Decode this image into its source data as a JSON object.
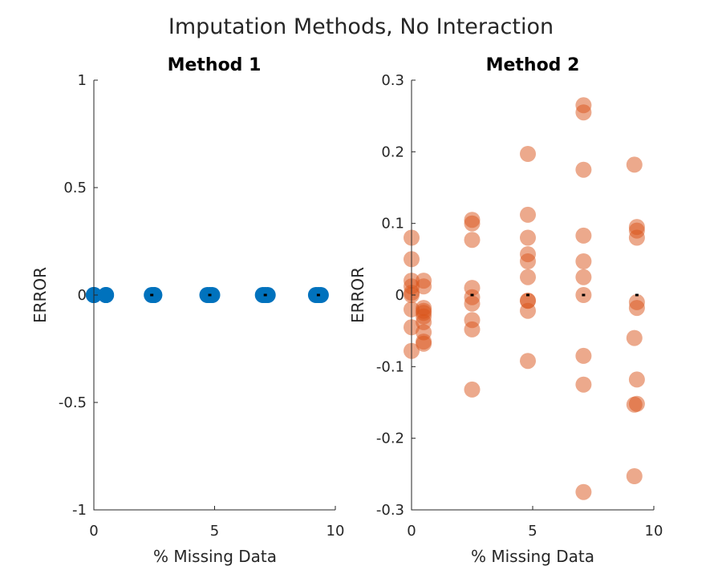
{
  "figure": {
    "title": "Imputation Methods, No Interaction"
  },
  "chart_data": [
    {
      "type": "scatter",
      "title": "Method 1",
      "xlabel": "% Missing Data",
      "ylabel": "ERROR",
      "xlim": [
        0,
        10
      ],
      "ylim": [
        -1,
        1
      ],
      "xticks": [
        "0",
        "5",
        "10"
      ],
      "yticks": [
        "-1",
        "-0.5",
        "0",
        "0.5",
        "1"
      ],
      "grid": false,
      "color": "#0072BD",
      "opacity": 1.0,
      "x": [
        0,
        0,
        0,
        0,
        0.5,
        0.5,
        0.5,
        2.4,
        2.5,
        2.5,
        4.7,
        4.8,
        4.9,
        7.0,
        7.1,
        7.2,
        9.2,
        9.3,
        9.4
      ],
      "y": [
        0,
        0,
        0,
        0,
        0,
        0,
        0,
        0,
        0,
        0,
        0,
        0,
        0,
        0,
        0,
        0,
        0,
        0,
        0
      ],
      "mean_markers": {
        "x": [
          2.4,
          4.8,
          7.1,
          9.3
        ],
        "y": [
          0,
          0,
          0,
          0
        ]
      }
    },
    {
      "type": "scatter",
      "title": "Method 2",
      "xlabel": "% Missing Data",
      "ylabel": "ERROR",
      "xlim": [
        0,
        10
      ],
      "ylim": [
        -0.3,
        0.3
      ],
      "xticks": [
        "0",
        "5",
        "10"
      ],
      "yticks": [
        "-0.3",
        "-0.2",
        "-0.1",
        "0",
        "0.1",
        "0.2",
        "0.3"
      ],
      "grid": false,
      "color": "#D95319",
      "opacity": 0.5,
      "x": [
        0,
        0,
        0,
        0,
        0,
        0,
        0,
        0,
        0,
        0.5,
        0.5,
        0.5,
        0.5,
        0.5,
        0.5,
        0.5,
        0.5,
        0.5,
        0.5,
        2.5,
        2.5,
        2.5,
        2.5,
        2.5,
        2.5,
        2.5,
        2.5,
        2.5,
        4.8,
        4.8,
        4.8,
        4.8,
        4.8,
        4.8,
        4.8,
        4.8,
        4.8,
        4.8,
        7.1,
        7.1,
        7.1,
        7.1,
        7.1,
        7.1,
        7.1,
        7.1,
        7.1,
        7.1,
        9.2,
        9.3,
        9.3,
        9.3,
        9.3,
        9.3,
        9.2,
        9.3,
        9.3,
        9.2,
        9.2
      ],
      "y": [
        0.08,
        0.05,
        0.02,
        0.012,
        0.003,
        -0.02,
        -0.045,
        -0.078,
        0,
        0.02,
        0.012,
        -0.018,
        -0.022,
        -0.025,
        -0.03,
        -0.038,
        -0.052,
        -0.065,
        -0.068,
        0.105,
        0.1,
        0.077,
        0.01,
        -0.003,
        -0.012,
        -0.035,
        -0.048,
        -0.132,
        0.197,
        0.112,
        0.08,
        0.057,
        0.047,
        0.025,
        -0.008,
        -0.022,
        -0.092,
        -0.008,
        0.265,
        0.255,
        0.175,
        0.083,
        0.047,
        0.025,
        -0.085,
        -0.125,
        -0.275,
        0,
        0.182,
        0.095,
        0.09,
        0.08,
        -0.01,
        -0.018,
        -0.06,
        -0.118,
        -0.152,
        -0.153,
        -0.253
      ],
      "mean_markers": {
        "x": [
          2.5,
          4.8,
          7.1,
          9.3
        ],
        "y": [
          0,
          0,
          0,
          0
        ]
      }
    }
  ]
}
